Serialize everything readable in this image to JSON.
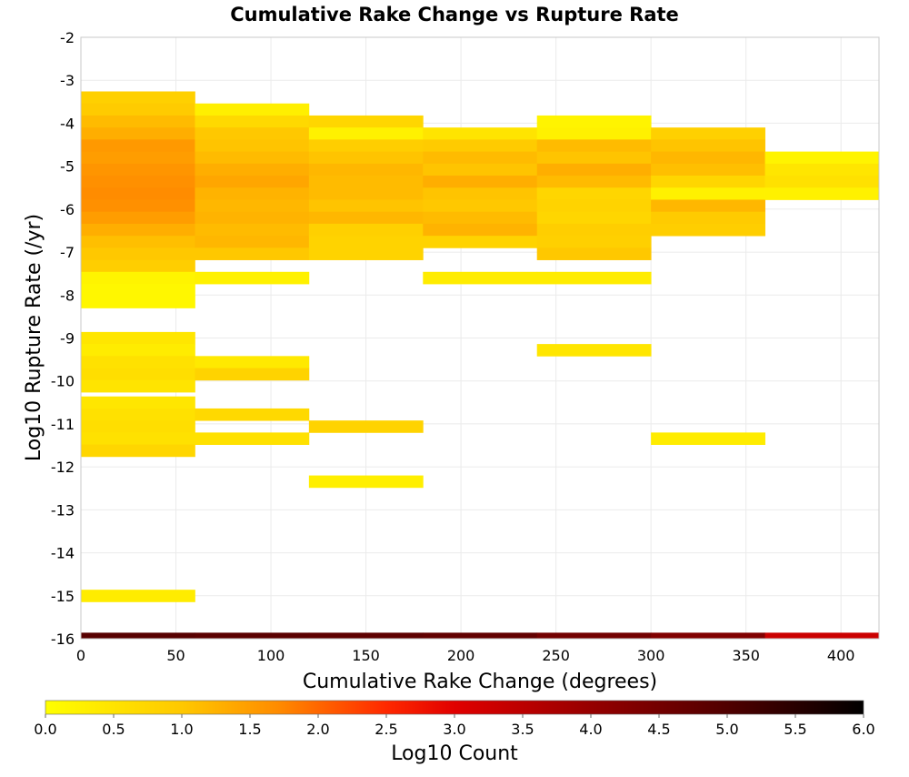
{
  "chart_data": {
    "type": "heatmap",
    "title": "Cumulative Rake Change vs Rupture Rate",
    "xlabel": "Cumulative Rake Change (degrees)",
    "ylabel": "Log10 Rupture Rate (/yr)",
    "xlim": [
      0,
      420
    ],
    "ylim": [
      -16,
      -2
    ],
    "x_ticks": [
      "0",
      "50",
      "100",
      "150",
      "200",
      "250",
      "300",
      "350",
      "400"
    ],
    "y_ticks": [
      "-2",
      "-3",
      "-4",
      "-5",
      "-6",
      "-7",
      "-8",
      "-9",
      "-10",
      "-11",
      "-12",
      "-13",
      "-14",
      "-15",
      "-16"
    ],
    "grid": true,
    "x_bin_width": 60,
    "y_bin_height": 0.28,
    "colorbar": {
      "label": "Log10 Count",
      "min": 0.0,
      "max": 6.0,
      "ticks": [
        "0.0",
        "0.5",
        "1.0",
        "1.5",
        "2.0",
        "2.5",
        "3.0",
        "3.5",
        "4.0",
        "4.5",
        "5.0",
        "5.5",
        "6.0"
      ],
      "stops": [
        {
          "v": 0.0,
          "color": "#ffff00"
        },
        {
          "v": 1.0,
          "color": "#ffc800"
        },
        {
          "v": 1.7,
          "color": "#ff8c00"
        },
        {
          "v": 2.5,
          "color": "#ff2800"
        },
        {
          "v": 3.0,
          "color": "#e10000"
        },
        {
          "v": 4.0,
          "color": "#960000"
        },
        {
          "v": 5.0,
          "color": "#500000"
        },
        {
          "v": 6.0,
          "color": "#000000"
        }
      ]
    },
    "cells": [
      {
        "x0": 0,
        "y": -3.4,
        "v": 0.85
      },
      {
        "x0": 0,
        "y": -3.68,
        "v": 0.95
      },
      {
        "x0": 0,
        "y": -3.96,
        "v": 1.15
      },
      {
        "x0": 0,
        "y": -4.24,
        "v": 1.3
      },
      {
        "x0": 0,
        "y": -4.52,
        "v": 1.55
      },
      {
        "x0": 0,
        "y": -4.8,
        "v": 1.5
      },
      {
        "x0": 0,
        "y": -5.08,
        "v": 1.6
      },
      {
        "x0": 0,
        "y": -5.36,
        "v": 1.65
      },
      {
        "x0": 0,
        "y": -5.64,
        "v": 1.7
      },
      {
        "x0": 0,
        "y": -5.92,
        "v": 1.65
      },
      {
        "x0": 0,
        "y": -6.2,
        "v": 1.5
      },
      {
        "x0": 0,
        "y": -6.48,
        "v": 1.3
      },
      {
        "x0": 0,
        "y": -6.76,
        "v": 1.1
      },
      {
        "x0": 0,
        "y": -7.04,
        "v": 1.0
      },
      {
        "x0": 0,
        "y": -7.32,
        "v": 0.9
      },
      {
        "x0": 0,
        "y": -7.6,
        "v": 0.2
      },
      {
        "x0": 0,
        "y": -7.88,
        "v": 0.15
      },
      {
        "x0": 0,
        "y": -8.16,
        "v": 0.15
      },
      {
        "x0": 0,
        "y": -9.0,
        "v": 0.45
      },
      {
        "x0": 0,
        "y": -9.28,
        "v": 0.35
      },
      {
        "x0": 0,
        "y": -9.56,
        "v": 0.55
      },
      {
        "x0": 0,
        "y": -9.84,
        "v": 0.6
      },
      {
        "x0": 0,
        "y": -10.12,
        "v": 0.5
      },
      {
        "x0": 0,
        "y": -10.5,
        "v": 0.45
      },
      {
        "x0": 0,
        "y": -10.78,
        "v": 0.55
      },
      {
        "x0": 0,
        "y": -11.06,
        "v": 0.6
      },
      {
        "x0": 0,
        "y": -11.34,
        "v": 0.55
      },
      {
        "x0": 0,
        "y": -11.62,
        "v": 0.75
      },
      {
        "x0": 0,
        "y": -15.0,
        "v": 0.35
      },
      {
        "x0": 60,
        "y": -3.68,
        "v": 0.3
      },
      {
        "x0": 60,
        "y": -3.96,
        "v": 0.7
      },
      {
        "x0": 60,
        "y": -4.24,
        "v": 1.0
      },
      {
        "x0": 60,
        "y": -4.52,
        "v": 1.05
      },
      {
        "x0": 60,
        "y": -4.8,
        "v": 1.15
      },
      {
        "x0": 60,
        "y": -5.08,
        "v": 1.3
      },
      {
        "x0": 60,
        "y": -5.36,
        "v": 1.4
      },
      {
        "x0": 60,
        "y": -5.64,
        "v": 1.25
      },
      {
        "x0": 60,
        "y": -5.92,
        "v": 1.2
      },
      {
        "x0": 60,
        "y": -6.2,
        "v": 1.25
      },
      {
        "x0": 60,
        "y": -6.48,
        "v": 1.15
      },
      {
        "x0": 60,
        "y": -6.76,
        "v": 1.2
      },
      {
        "x0": 60,
        "y": -7.04,
        "v": 1.0
      },
      {
        "x0": 60,
        "y": -7.6,
        "v": 0.25
      },
      {
        "x0": 60,
        "y": -9.56,
        "v": 0.4
      },
      {
        "x0": 60,
        "y": -9.84,
        "v": 0.8
      },
      {
        "x0": 60,
        "y": -10.78,
        "v": 0.7
      },
      {
        "x0": 60,
        "y": -11.34,
        "v": 0.55
      },
      {
        "x0": 120,
        "y": -3.96,
        "v": 0.75
      },
      {
        "x0": 120,
        "y": -4.24,
        "v": 0.25
      },
      {
        "x0": 120,
        "y": -4.52,
        "v": 0.9
      },
      {
        "x0": 120,
        "y": -4.8,
        "v": 1.05
      },
      {
        "x0": 120,
        "y": -5.08,
        "v": 1.2
      },
      {
        "x0": 120,
        "y": -5.36,
        "v": 1.15
      },
      {
        "x0": 120,
        "y": -5.64,
        "v": 1.15
      },
      {
        "x0": 120,
        "y": -5.92,
        "v": 1.05
      },
      {
        "x0": 120,
        "y": -6.2,
        "v": 1.2
      },
      {
        "x0": 120,
        "y": -6.48,
        "v": 0.85
      },
      {
        "x0": 120,
        "y": -6.76,
        "v": 0.8
      },
      {
        "x0": 120,
        "y": -7.04,
        "v": 0.8
      },
      {
        "x0": 120,
        "y": -11.06,
        "v": 0.8
      },
      {
        "x0": 120,
        "y": -12.34,
        "v": 0.3
      },
      {
        "x0": 180,
        "y": -4.24,
        "v": 0.5
      },
      {
        "x0": 180,
        "y": -4.52,
        "v": 0.95
      },
      {
        "x0": 180,
        "y": -4.8,
        "v": 1.15
      },
      {
        "x0": 180,
        "y": -5.08,
        "v": 1.05
      },
      {
        "x0": 180,
        "y": -5.36,
        "v": 1.3
      },
      {
        "x0": 180,
        "y": -5.64,
        "v": 1.05
      },
      {
        "x0": 180,
        "y": -5.92,
        "v": 1.0
      },
      {
        "x0": 180,
        "y": -6.2,
        "v": 1.15
      },
      {
        "x0": 180,
        "y": -6.48,
        "v": 1.25
      },
      {
        "x0": 180,
        "y": -6.76,
        "v": 0.8
      },
      {
        "x0": 180,
        "y": -7.6,
        "v": 0.35
      },
      {
        "x0": 240,
        "y": -3.96,
        "v": 0.2
      },
      {
        "x0": 240,
        "y": -4.24,
        "v": 0.25
      },
      {
        "x0": 240,
        "y": -4.52,
        "v": 1.15
      },
      {
        "x0": 240,
        "y": -4.8,
        "v": 1.05
      },
      {
        "x0": 240,
        "y": -5.08,
        "v": 1.3
      },
      {
        "x0": 240,
        "y": -5.36,
        "v": 1.15
      },
      {
        "x0": 240,
        "y": -5.64,
        "v": 0.75
      },
      {
        "x0": 240,
        "y": -5.92,
        "v": 0.8
      },
      {
        "x0": 240,
        "y": -6.2,
        "v": 0.75
      },
      {
        "x0": 240,
        "y": -6.48,
        "v": 0.9
      },
      {
        "x0": 240,
        "y": -6.76,
        "v": 0.85
      },
      {
        "x0": 240,
        "y": -7.04,
        "v": 1.0
      },
      {
        "x0": 240,
        "y": -7.6,
        "v": 0.35
      },
      {
        "x0": 240,
        "y": -9.28,
        "v": 0.45
      },
      {
        "x0": 300,
        "y": -4.24,
        "v": 0.85
      },
      {
        "x0": 300,
        "y": -4.52,
        "v": 1.05
      },
      {
        "x0": 300,
        "y": -4.8,
        "v": 1.2
      },
      {
        "x0": 300,
        "y": -5.08,
        "v": 1.1
      },
      {
        "x0": 300,
        "y": -5.36,
        "v": 0.75
      },
      {
        "x0": 300,
        "y": -5.64,
        "v": 0.25
      },
      {
        "x0": 300,
        "y": -5.92,
        "v": 1.2
      },
      {
        "x0": 300,
        "y": -6.2,
        "v": 0.95
      },
      {
        "x0": 300,
        "y": -6.48,
        "v": 0.9
      },
      {
        "x0": 300,
        "y": -11.34,
        "v": 0.35
      },
      {
        "x0": 360,
        "y": -4.8,
        "v": 0.2
      },
      {
        "x0": 360,
        "y": -5.08,
        "v": 0.45
      },
      {
        "x0": 360,
        "y": -5.36,
        "v": 0.55
      },
      {
        "x0": 360,
        "y": -5.64,
        "v": 0.25
      }
    ],
    "bottom_row": [
      {
        "x0": 0,
        "v": 4.9
      },
      {
        "x0": 60,
        "v": 4.85
      },
      {
        "x0": 120,
        "v": 4.8
      },
      {
        "x0": 180,
        "v": 4.75
      },
      {
        "x0": 240,
        "v": 4.5
      },
      {
        "x0": 300,
        "v": 4.3
      },
      {
        "x0": 360,
        "v": 3.3
      }
    ]
  }
}
